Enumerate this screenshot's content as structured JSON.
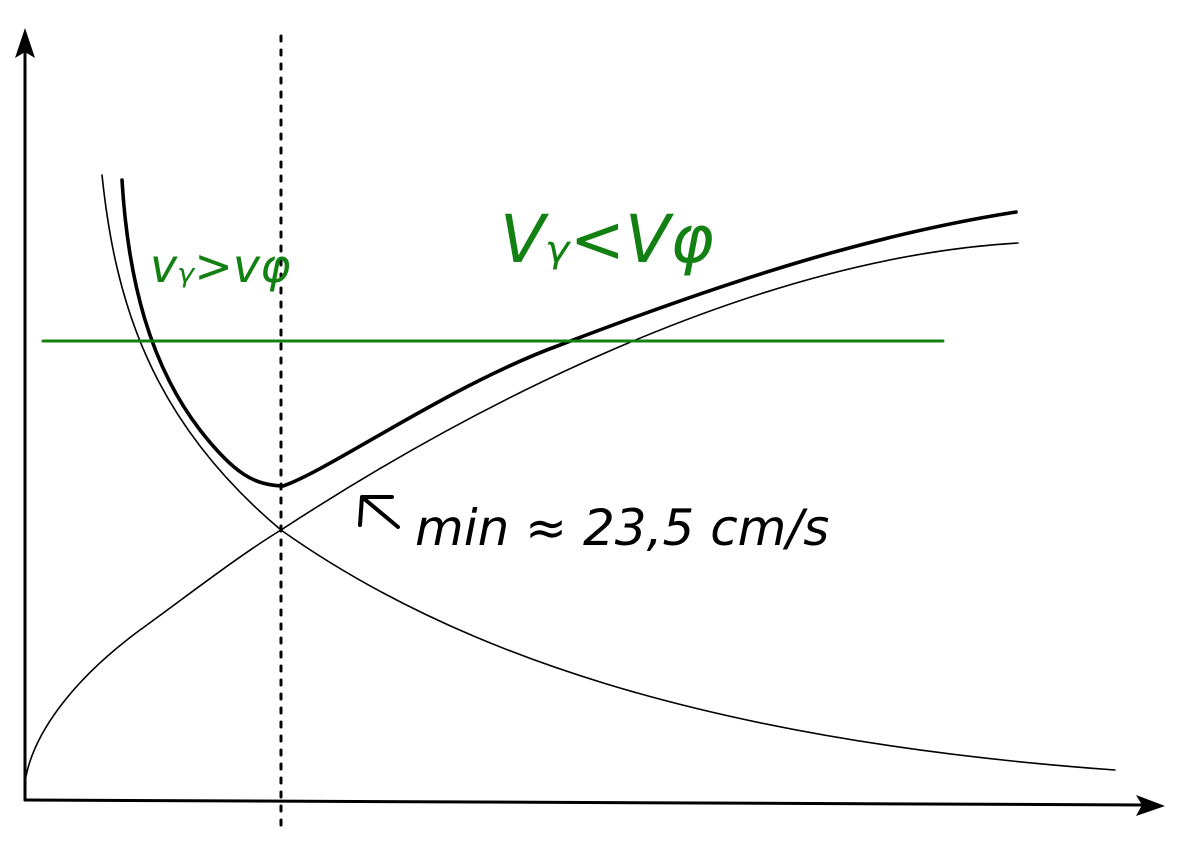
{
  "labels": {
    "left_region": "vᵧ>vφ",
    "right_region": "Vᵧ<Vφ",
    "min_note": "min ≈ 23,5 cm/s"
  },
  "colors": {
    "ink": "#000000",
    "accent": "#128012"
  }
}
